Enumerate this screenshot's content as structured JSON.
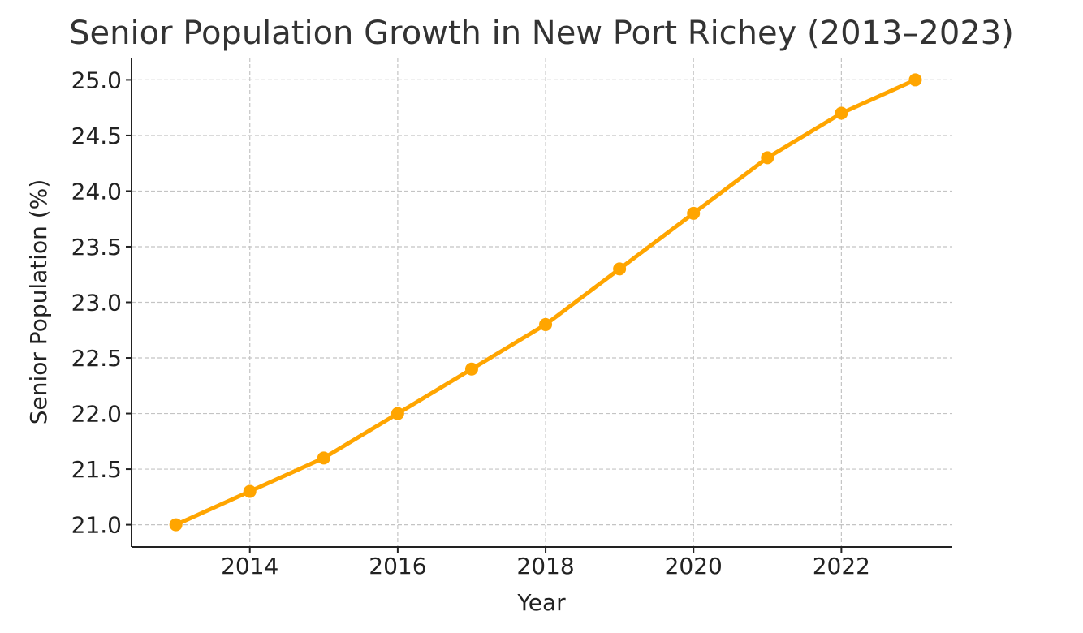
{
  "chart_data": {
    "type": "line",
    "title": "Senior Population Growth in New Port Richey (2013–2023)",
    "xlabel": "Year",
    "ylabel": "Senior Population (%)",
    "xlim": [
      2012.4,
      2023.5
    ],
    "ylim": [
      20.8,
      25.2
    ],
    "x_ticks": [
      2014,
      2016,
      2018,
      2020,
      2022
    ],
    "x_tick_labels": [
      "2014",
      "2016",
      "2018",
      "2020",
      "2022"
    ],
    "y_ticks": [
      21.0,
      21.5,
      22.0,
      22.5,
      23.0,
      23.5,
      24.0,
      24.5,
      25.0
    ],
    "y_tick_labels": [
      "21.0",
      "21.5",
      "22.0",
      "22.5",
      "23.0",
      "23.5",
      "24.0",
      "24.5",
      "25.0"
    ],
    "grid": true,
    "series": [
      {
        "color": "#FFA500",
        "marker": "circle",
        "x": [
          2013,
          2014,
          2015,
          2016,
          2017,
          2018,
          2019,
          2020,
          2021,
          2022,
          2023
        ],
        "y": [
          21.0,
          21.3,
          21.6,
          22.0,
          22.4,
          22.8,
          23.3,
          23.8,
          24.3,
          24.7,
          25.0
        ]
      }
    ]
  }
}
